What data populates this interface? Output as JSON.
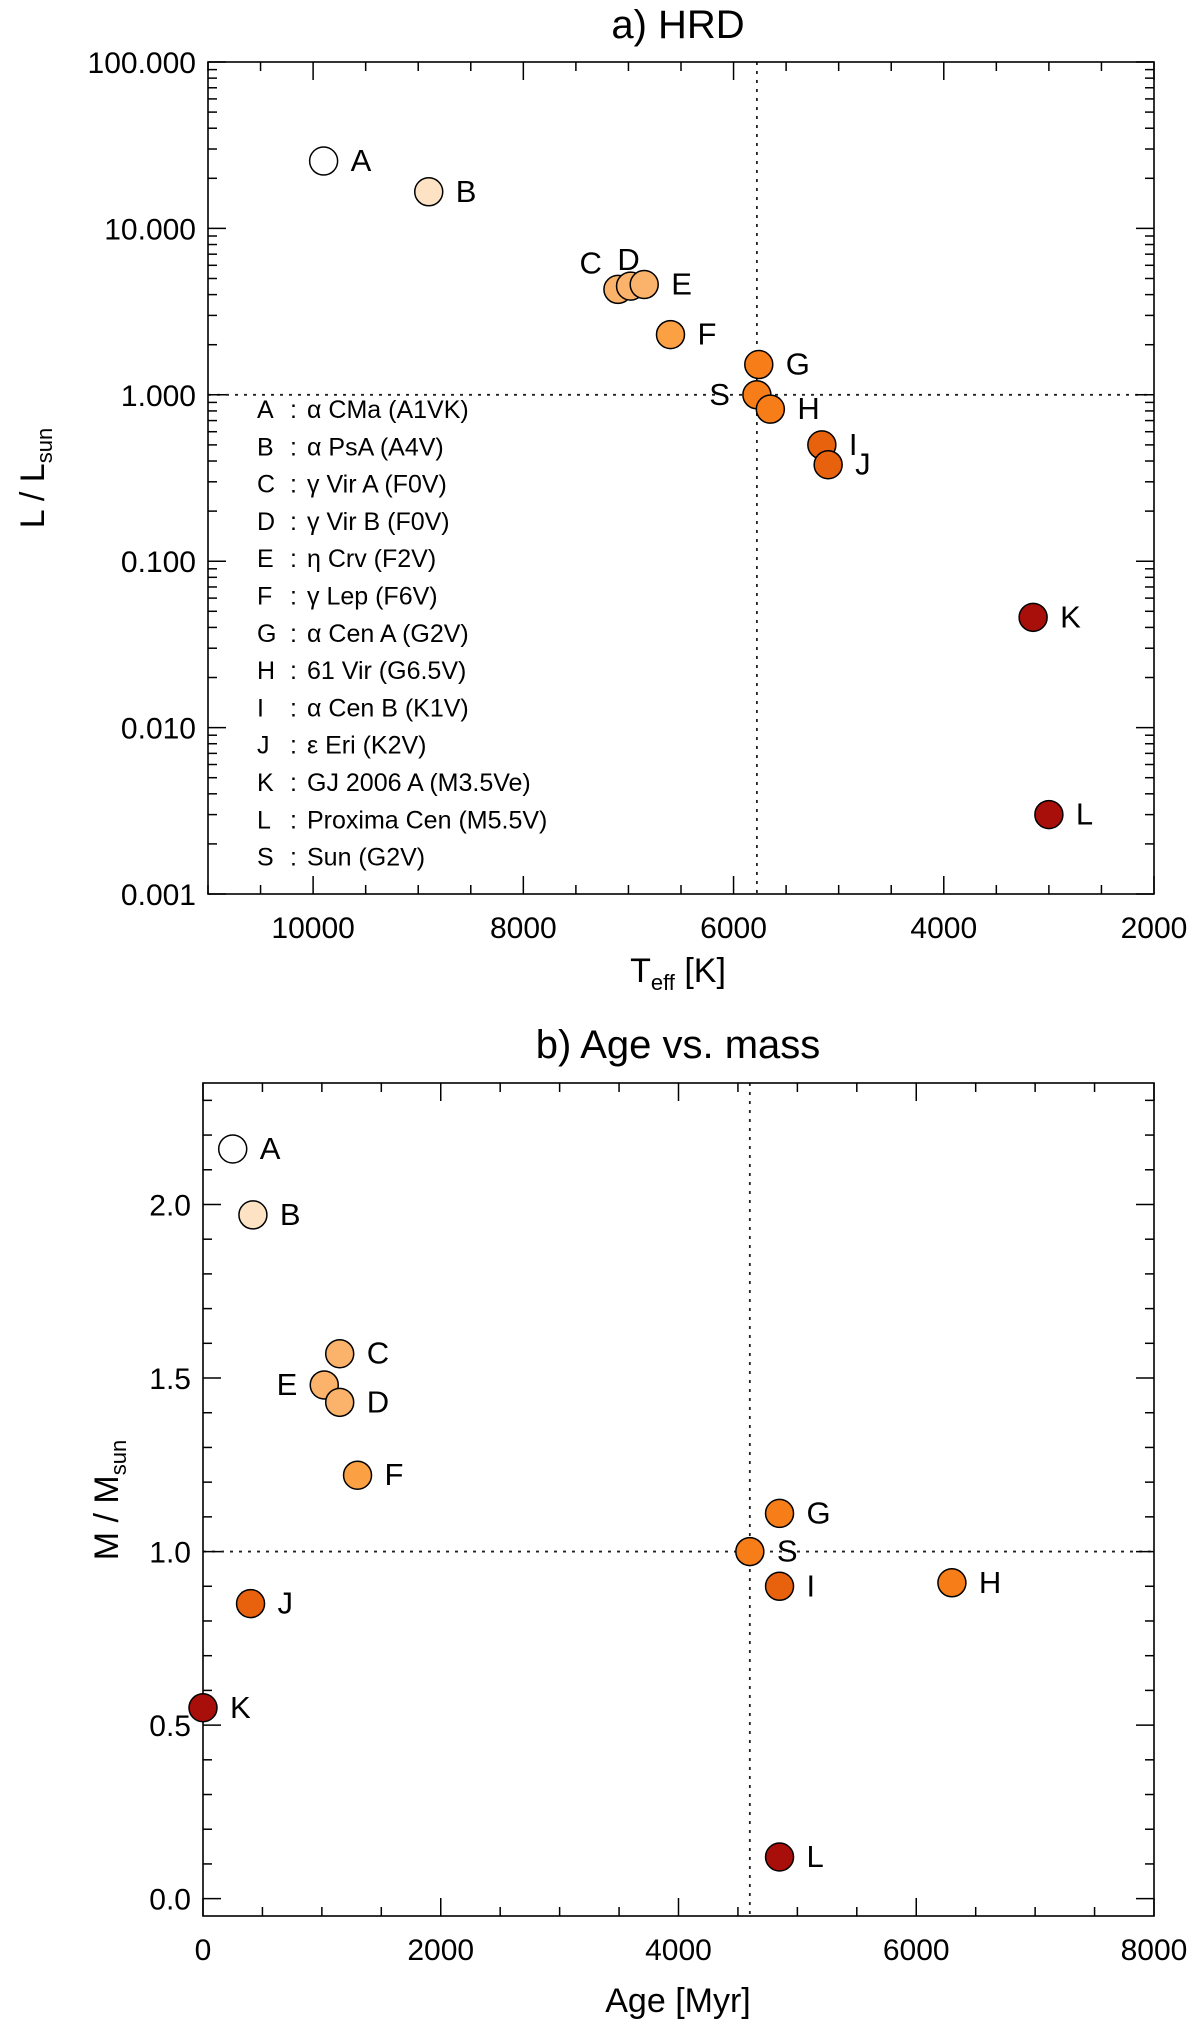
{
  "chart_data": [
    {
      "id": "hrd",
      "type": "scatter",
      "title": "a) HRD",
      "xlabel": "T",
      "xlabel_sub": "eff",
      "xlabel_suffix": " [K]",
      "ylabel": "L / L",
      "ylabel_sub": "sun",
      "xscale": "linear",
      "yscale": "log",
      "xlim": [
        11000,
        2000
      ],
      "ylim": [
        0.001,
        100
      ],
      "xticks": [
        10000,
        8000,
        6000,
        4000,
        2000
      ],
      "xtick_labels": [
        "10000",
        "8000",
        "6000",
        "4000",
        "2000"
      ],
      "yticks": [
        0.001,
        0.01,
        0.1,
        1,
        10,
        100
      ],
      "ytick_labels": [
        "0.001",
        "0.010",
        "0.100",
        "1.000",
        "10.000",
        "100.000"
      ],
      "ref_lines": {
        "x": 5778,
        "y": 1
      },
      "points": [
        {
          "label": "A",
          "x": 9900,
          "y": 25.4,
          "color": "#ffffff",
          "label_pos": "right"
        },
        {
          "label": "B",
          "x": 8900,
          "y": 16.6,
          "color": "#fde3c4",
          "label_pos": "right"
        },
        {
          "label": "C",
          "x": 7100,
          "y": 4.3,
          "color": "#fbb36b",
          "label_pos": "top-left"
        },
        {
          "label": "D",
          "x": 6980,
          "y": 4.5,
          "color": "#fbb36b",
          "label_pos": "top"
        },
        {
          "label": "E",
          "x": 6850,
          "y": 4.6,
          "color": "#fbb36b",
          "label_pos": "right"
        },
        {
          "label": "F",
          "x": 6600,
          "y": 2.3,
          "color": "#fba144",
          "label_pos": "right"
        },
        {
          "label": "G",
          "x": 5760,
          "y": 1.52,
          "color": "#f67d18",
          "label_pos": "right"
        },
        {
          "label": "S",
          "x": 5778,
          "y": 1.0,
          "color": "#f67d18",
          "label_pos": "left"
        },
        {
          "label": "H",
          "x": 5650,
          "y": 0.82,
          "color": "#f67d18",
          "label_pos": "right"
        },
        {
          "label": "I",
          "x": 5160,
          "y": 0.5,
          "color": "#e8620e",
          "label_pos": "right"
        },
        {
          "label": "J",
          "x": 5100,
          "y": 0.38,
          "color": "#e8620e",
          "label_pos": "right"
        },
        {
          "label": "K",
          "x": 3150,
          "y": 0.046,
          "color": "#a80f0a",
          "label_pos": "right"
        },
        {
          "label": "L",
          "x": 3000,
          "y": 0.003,
          "color": "#a80f0a",
          "label_pos": "right"
        }
      ],
      "legend": [
        {
          "key": "A",
          "greek": "α",
          "text": " CMa (A1VK)"
        },
        {
          "key": "B",
          "greek": "α",
          "text": " PsA (A4V)"
        },
        {
          "key": "C",
          "greek": "γ",
          "text": " Vir A (F0V)"
        },
        {
          "key": "D",
          "greek": "γ",
          "text": " Vir B (F0V)"
        },
        {
          "key": "E",
          "greek": "η",
          "text": " Crv (F2V)"
        },
        {
          "key": "F",
          "greek": "γ",
          "text": " Lep (F6V)"
        },
        {
          "key": "G",
          "greek": "α",
          "text": " Cen A (G2V)"
        },
        {
          "key": "H",
          "greek": "",
          "text": "61 Vir (G6.5V)"
        },
        {
          "key": "I",
          "greek": "α",
          "text": " Cen B (K1V)"
        },
        {
          "key": "J",
          "greek": "ε",
          "text": " Eri (K2V)"
        },
        {
          "key": "K",
          "greek": "",
          "text": "GJ 2006 A (M3.5Ve)"
        },
        {
          "key": "L",
          "greek": "",
          "text": "Proxima Cen (M5.5V)"
        },
        {
          "key": "S",
          "greek": "",
          "text": "Sun (G2V)"
        }
      ]
    },
    {
      "id": "age-mass",
      "type": "scatter",
      "title": "b) Age vs. mass",
      "xlabel": "Age [Myr]",
      "ylabel": "M / M",
      "ylabel_sub": "sun",
      "xscale": "linear",
      "yscale": "linear",
      "xlim": [
        0,
        8000
      ],
      "ylim": [
        -0.05,
        2.35
      ],
      "xticks": [
        0,
        2000,
        4000,
        6000,
        8000
      ],
      "xtick_labels": [
        "0",
        "2000",
        "4000",
        "6000",
        "8000"
      ],
      "yticks": [
        0.0,
        0.5,
        1.0,
        1.5,
        2.0
      ],
      "ytick_labels": [
        "0.0",
        "0.5",
        "1.0",
        "1.5",
        "2.0"
      ],
      "ref_lines": {
        "x": 4600,
        "y": 1.0
      },
      "points": [
        {
          "label": "A",
          "x": 250,
          "y": 2.16,
          "color": "#ffffff",
          "label_pos": "right"
        },
        {
          "label": "B",
          "x": 420,
          "y": 1.97,
          "color": "#fde3c4",
          "label_pos": "right"
        },
        {
          "label": "C",
          "x": 1150,
          "y": 1.57,
          "color": "#fbb36b",
          "label_pos": "right"
        },
        {
          "label": "E",
          "x": 1020,
          "y": 1.48,
          "color": "#fbb36b",
          "label_pos": "left"
        },
        {
          "label": "D",
          "x": 1150,
          "y": 1.43,
          "color": "#fbb36b",
          "label_pos": "right"
        },
        {
          "label": "F",
          "x": 1300,
          "y": 1.22,
          "color": "#fba144",
          "label_pos": "right"
        },
        {
          "label": "G",
          "x": 4850,
          "y": 1.11,
          "color": "#f67d18",
          "label_pos": "right"
        },
        {
          "label": "S",
          "x": 4600,
          "y": 1.0,
          "color": "#f67d18",
          "label_pos": "right"
        },
        {
          "label": "I",
          "x": 4850,
          "y": 0.9,
          "color": "#e8620e",
          "label_pos": "right"
        },
        {
          "label": "H",
          "x": 6300,
          "y": 0.91,
          "color": "#f67d18",
          "label_pos": "right"
        },
        {
          "label": "J",
          "x": 400,
          "y": 0.85,
          "color": "#e8620e",
          "label_pos": "right"
        },
        {
          "label": "K",
          "x": 0,
          "y": 0.55,
          "color": "#a80f0a",
          "label_pos": "right"
        },
        {
          "label": "L",
          "x": 4850,
          "y": 0.12,
          "color": "#a80f0a",
          "label_pos": "right"
        }
      ]
    }
  ]
}
